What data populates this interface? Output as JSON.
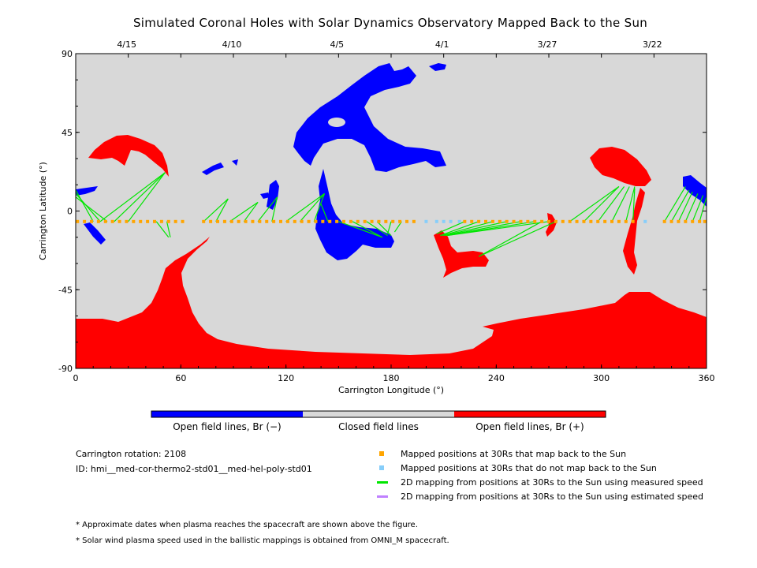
{
  "title": "Simulated Coronal Holes with Solar Dynamics Observatory Mapped Back to the Sun",
  "colors": {
    "background": "#d8d8d8",
    "open_negative": "#0000ff",
    "open_positive": "#ff0000",
    "closed": "#d8d8d8",
    "mapped": "#ffa500",
    "not_mapped": "#87cefa",
    "measured_speed": "#00e600",
    "estimated_speed": "#c080ff"
  },
  "chart_data": {
    "type": "map",
    "xlabel": "Carrington Longitude (°)",
    "ylabel": "Carrington Latitude (°)",
    "xlim": [
      0,
      360
    ],
    "ylim": [
      -90,
      90
    ],
    "xticks": [
      "0",
      "60",
      "120",
      "180",
      "240",
      "300",
      "360"
    ],
    "yticks": [
      "90",
      "45",
      "0",
      "-45",
      "-90"
    ],
    "top_axis_dates": [
      {
        "label": "4/15",
        "lon": 30
      },
      {
        "label": "4/10",
        "lon": 90
      },
      {
        "label": "4/5",
        "lon": 150
      },
      {
        "label": "4/1",
        "lon": 210
      },
      {
        "label": "3/27",
        "lon": 270
      },
      {
        "label": "3/22",
        "lon": 330
      }
    ],
    "mapped_positions_lat": -6,
    "mapped_lons": [
      1,
      5,
      9,
      13,
      17,
      21,
      25,
      29,
      33,
      37,
      41,
      45,
      49,
      53,
      57,
      61,
      73,
      77,
      81,
      85,
      89,
      93,
      97,
      101,
      105,
      109,
      113,
      117,
      121,
      125,
      129,
      133,
      137,
      141,
      145,
      149,
      153,
      157,
      161,
      165,
      169,
      173,
      177,
      181,
      185,
      189,
      193,
      222,
      226,
      230,
      234,
      238,
      242,
      246,
      250,
      254,
      258,
      262,
      266,
      270,
      274,
      278,
      282,
      286,
      290,
      294,
      298,
      302,
      306,
      310,
      314,
      318,
      336,
      340,
      344,
      348,
      352,
      356,
      359
    ],
    "not_mapped_lons": [
      200,
      206,
      210,
      214,
      219,
      325
    ],
    "mapping_lines": [
      {
        "from": [
          10,
          -6
        ],
        "to": [
          0,
          12
        ]
      },
      {
        "from": [
          14,
          -6
        ],
        "to": [
          0,
          10
        ]
      },
      {
        "from": [
          18,
          -6
        ],
        "to": [
          0,
          8
        ]
      },
      {
        "from": [
          14,
          -6
        ],
        "to": [
          51,
          22
        ]
      },
      {
        "from": [
          22,
          -6
        ],
        "to": [
          51,
          22
        ]
      },
      {
        "from": [
          30,
          -6
        ],
        "to": [
          51,
          22
        ]
      },
      {
        "from": [
          46,
          -6
        ],
        "to": [
          53,
          -15
        ]
      },
      {
        "from": [
          52,
          -6
        ],
        "to": [
          54,
          -15
        ]
      },
      {
        "from": [
          73,
          -6
        ],
        "to": [
          87,
          7
        ]
      },
      {
        "from": [
          80,
          -6
        ],
        "to": [
          87,
          7
        ]
      },
      {
        "from": [
          88,
          -6
        ],
        "to": [
          104,
          5
        ]
      },
      {
        "from": [
          96,
          -6
        ],
        "to": [
          104,
          5
        ]
      },
      {
        "from": [
          104,
          -6
        ],
        "to": [
          115,
          8
        ]
      },
      {
        "from": [
          112,
          -6
        ],
        "to": [
          115,
          8
        ]
      },
      {
        "from": [
          120,
          -6
        ],
        "to": [
          142,
          10
        ]
      },
      {
        "from": [
          128,
          -6
        ],
        "to": [
          142,
          10
        ]
      },
      {
        "from": [
          136,
          -6
        ],
        "to": [
          142,
          10
        ]
      },
      {
        "from": [
          144,
          -6
        ],
        "to": [
          140,
          4
        ]
      },
      {
        "from": [
          150,
          -6
        ],
        "to": [
          175,
          -15
        ]
      },
      {
        "from": [
          158,
          -6
        ],
        "to": [
          175,
          -15
        ]
      },
      {
        "from": [
          166,
          -6
        ],
        "to": [
          178,
          -14
        ]
      },
      {
        "from": [
          172,
          -6
        ],
        "to": [
          180,
          -14
        ]
      },
      {
        "from": [
          180,
          -6
        ],
        "to": [
          178,
          -13
        ]
      },
      {
        "from": [
          186,
          -6
        ],
        "to": [
          182,
          -12
        ]
      },
      {
        "from": [
          222,
          -6
        ],
        "to": [
          206,
          -13
        ]
      },
      {
        "from": [
          230,
          -6
        ],
        "to": [
          208,
          -14
        ]
      },
      {
        "from": [
          238,
          -6
        ],
        "to": [
          209,
          -14
        ]
      },
      {
        "from": [
          246,
          -6
        ],
        "to": [
          210,
          -14
        ]
      },
      {
        "from": [
          254,
          -6
        ],
        "to": [
          211,
          -14
        ]
      },
      {
        "from": [
          262,
          -6
        ],
        "to": [
          212,
          -14
        ]
      },
      {
        "from": [
          270,
          -6
        ],
        "to": [
          212,
          -14
        ]
      },
      {
        "from": [
          266,
          -6
        ],
        "to": [
          230,
          -26
        ]
      },
      {
        "from": [
          274,
          -6
        ],
        "to": [
          230,
          -26
        ]
      },
      {
        "from": [
          282,
          -6
        ],
        "to": [
          310,
          14
        ]
      },
      {
        "from": [
          290,
          -6
        ],
        "to": [
          310,
          14
        ]
      },
      {
        "from": [
          298,
          -6
        ],
        "to": [
          313,
          14
        ]
      },
      {
        "from": [
          306,
          -6
        ],
        "to": [
          316,
          14
        ]
      },
      {
        "from": [
          314,
          -6
        ],
        "to": [
          319,
          14
        ]
      },
      {
        "from": [
          318,
          -6
        ],
        "to": [
          319,
          13
        ]
      },
      {
        "from": [
          336,
          -6
        ],
        "to": [
          348,
          14
        ]
      },
      {
        "from": [
          340,
          -6
        ],
        "to": [
          350,
          12
        ]
      },
      {
        "from": [
          344,
          -6
        ],
        "to": [
          352,
          11
        ]
      },
      {
        "from": [
          348,
          -6
        ],
        "to": [
          355,
          10
        ]
      },
      {
        "from": [
          352,
          -6
        ],
        "to": [
          358,
          9
        ]
      },
      {
        "from": [
          356,
          -6
        ],
        "to": [
          360,
          8
        ]
      }
    ]
  },
  "colorbar": {
    "labels": [
      "Open field lines, Br (−)",
      "Closed field lines",
      "Open field lines, Br (+)"
    ]
  },
  "info": {
    "rotation": "Carrington rotation: 2108",
    "id": "ID: hmi__med-cor-thermo2-std01__med-hel-poly-std01"
  },
  "legend": [
    {
      "type": "square",
      "color": "#ffa500",
      "label": "Mapped positions at 30Rs that map back to the Sun"
    },
    {
      "type": "square",
      "color": "#87cefa",
      "label": "Mapped positions at 30Rs that do not map back to the Sun"
    },
    {
      "type": "line",
      "color": "#00e600",
      "label": "2D mapping from positions at 30Rs to the Sun using measured speed"
    },
    {
      "type": "line",
      "color": "#c080ff",
      "label": "2D mapping from positions at 30Rs to the Sun using estimated speed"
    }
  ],
  "notes": [
    "* Approximate dates when plasma reaches the spacecraft are shown above the figure.",
    "* Solar wind plasma speed used in the ballistic mappings is obtained from OMNI_M spacecraft."
  ]
}
